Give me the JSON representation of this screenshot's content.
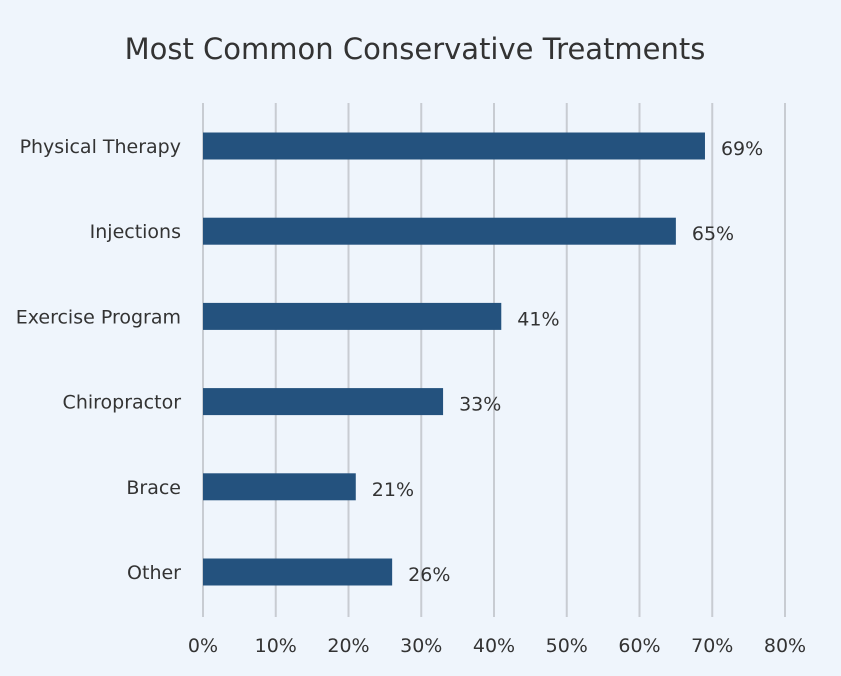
{
  "chart_data": {
    "type": "bar",
    "orientation": "horizontal",
    "title": "Most Common Conservative Treatments",
    "xlabel": "",
    "ylabel": "",
    "categories": [
      "Physical Therapy",
      "Injections",
      "Exercise Program",
      "Chiropractor",
      "Brace",
      "Other"
    ],
    "values": [
      69,
      65,
      41,
      33,
      21,
      26
    ],
    "value_labels": [
      "69%",
      "65%",
      "41%",
      "33%",
      "21%",
      "26%"
    ],
    "xlim": [
      0,
      80
    ],
    "x_ticks": [
      0,
      10,
      20,
      30,
      40,
      50,
      60,
      70,
      80
    ],
    "x_tick_labels": [
      "0%",
      "10%",
      "20%",
      "30%",
      "40%",
      "50%",
      "60%",
      "70%",
      "80%"
    ],
    "grid": "vertical",
    "legend": "none",
    "colors": {
      "bar": "#24527e",
      "background": "#eff5fc",
      "grid": "#c8ccd2",
      "text": "#333333"
    }
  }
}
